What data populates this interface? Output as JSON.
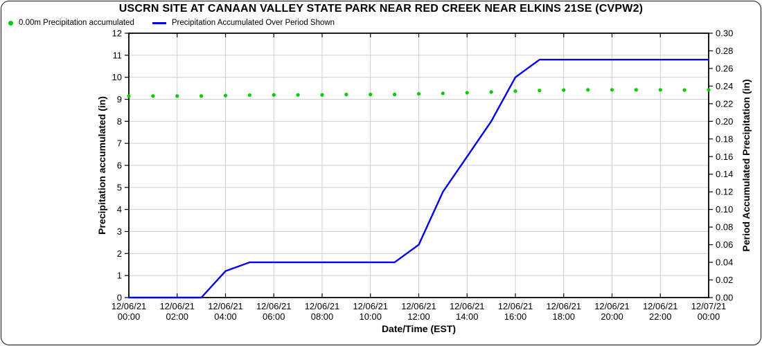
{
  "chart": {
    "title": "USCRN SITE AT CANAAN VALLEY STATE PARK NEAR RED CREEK NEAR ELKINS 21SE (CVPW2)"
  },
  "legend": {
    "items": [
      {
        "label": "0.00m Precipitation accumulated",
        "marker": "dot",
        "color": "#00CC00"
      },
      {
        "label": "Precipitation Accumulated Over Period Shown",
        "marker": "line",
        "color": "#0000EE"
      }
    ]
  },
  "chart_data": {
    "type": "line",
    "title": "USCRN SITE AT CANAAN VALLEY STATE PARK NEAR RED CREEK NEAR ELKINS 21SE (CVPW2)",
    "grid": {
      "color": "#CFCFCF",
      "horizontal": "left-axis-integer-ticks",
      "vertical": "x-axis-2h-ticks"
    },
    "x_axis": {
      "title": "Date/Time (EST)",
      "min_hour": 0,
      "max_hour": 24,
      "tick_hours": [
        0,
        2,
        4,
        6,
        8,
        10,
        12,
        14,
        16,
        18,
        20,
        22,
        24
      ],
      "tick_labels": [
        {
          "date": "12/06/21",
          "time": "00:00"
        },
        {
          "date": "12/06/21",
          "time": "02:00"
        },
        {
          "date": "12/06/21",
          "time": "04:00"
        },
        {
          "date": "12/06/21",
          "time": "06:00"
        },
        {
          "date": "12/06/21",
          "time": "08:00"
        },
        {
          "date": "12/06/21",
          "time": "10:00"
        },
        {
          "date": "12/06/21",
          "time": "12:00"
        },
        {
          "date": "12/06/21",
          "time": "14:00"
        },
        {
          "date": "12/06/21",
          "time": "16:00"
        },
        {
          "date": "12/06/21",
          "time": "18:00"
        },
        {
          "date": "12/06/21",
          "time": "20:00"
        },
        {
          "date": "12/06/21",
          "time": "22:00"
        },
        {
          "date": "12/07/21",
          "time": "00:00"
        }
      ]
    },
    "left_axis": {
      "title": "Precipitation accumulated (in)",
      "min": 0,
      "max": 12,
      "tick_values": [
        0,
        1,
        2,
        3,
        4,
        5,
        6,
        7,
        8,
        9,
        10,
        11,
        12
      ],
      "tick_labels": [
        "0",
        "1",
        "2",
        "3",
        "4",
        "5",
        "6",
        "7",
        "8",
        "9",
        "10",
        "11",
        "12"
      ]
    },
    "right_axis": {
      "title": "Period Accumulated Precipitation (in)",
      "min": 0,
      "max": 0.3,
      "tick_values": [
        0,
        0.02,
        0.04,
        0.06,
        0.08,
        0.1,
        0.12,
        0.14,
        0.16,
        0.18,
        0.2,
        0.22,
        0.24,
        0.26,
        0.28,
        0.3
      ],
      "tick_labels": [
        "0.00",
        "0.02",
        "0.04",
        "0.06",
        "0.08",
        "0.10",
        "0.12",
        "0.14",
        "0.16",
        "0.18",
        "0.20",
        "0.22",
        "0.24",
        "0.26",
        "0.28",
        "0.30"
      ]
    },
    "series": [
      {
        "name": "0.00m Precipitation accumulated",
        "style": "scatter",
        "axis": "left",
        "color": "#00CC00",
        "hours": [
          0,
          1,
          2,
          3,
          4,
          5,
          6,
          7,
          8,
          9,
          10,
          11,
          12,
          13,
          14,
          15,
          16,
          17,
          18,
          19,
          20,
          21,
          22,
          23,
          24
        ],
        "values": [
          9.15,
          9.15,
          9.15,
          9.15,
          9.17,
          9.19,
          9.2,
          9.2,
          9.2,
          9.22,
          9.22,
          9.22,
          9.25,
          9.27,
          9.3,
          9.33,
          9.37,
          9.4,
          9.42,
          9.43,
          9.43,
          9.43,
          9.43,
          9.42,
          9.43
        ]
      },
      {
        "name": "Precipitation Accumulated Over Period Shown",
        "style": "line",
        "axis": "right",
        "color": "#0000EE",
        "hours": [
          0,
          1,
          2,
          3,
          4,
          5,
          6,
          7,
          8,
          9,
          10,
          11,
          12,
          13,
          14,
          15,
          16,
          17,
          18,
          19,
          20,
          21,
          22,
          23,
          24
        ],
        "values": [
          0.0,
          0.0,
          0.0,
          0.0,
          0.03,
          0.04,
          0.04,
          0.04,
          0.04,
          0.04,
          0.04,
          0.04,
          0.06,
          0.12,
          0.16,
          0.2,
          0.25,
          0.27,
          0.27,
          0.27,
          0.27,
          0.27,
          0.27,
          0.27,
          0.27
        ]
      }
    ]
  }
}
